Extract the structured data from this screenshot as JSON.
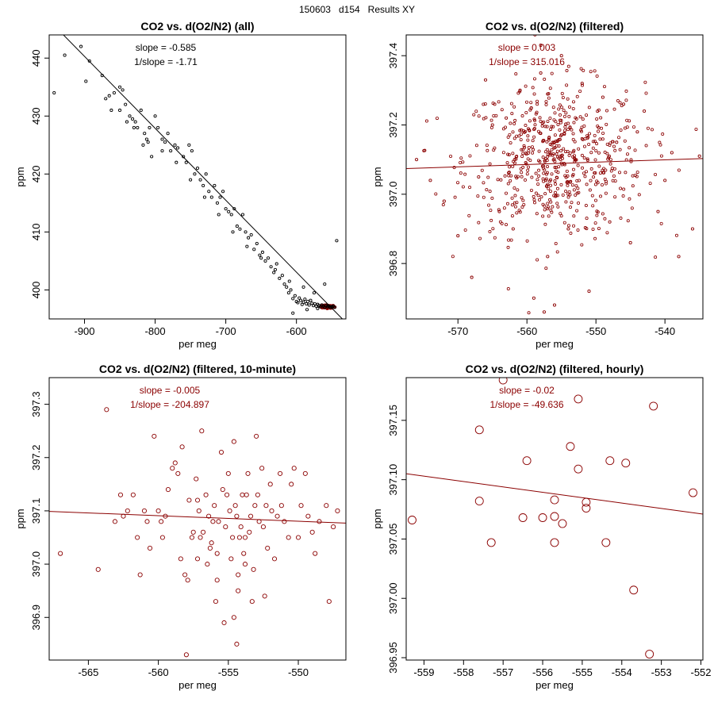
{
  "figure_title": "150603   d154   Results XY",
  "chart_data": [
    {
      "type": "scatter",
      "title": "CO2 vs. d(O2/N2) (all)",
      "xlabel": "per meg",
      "ylabel": "ppm",
      "xlim": [
        -950,
        -530
      ],
      "ylim": [
        395,
        444
      ],
      "xticks": [
        -900,
        -800,
        -700,
        -600
      ],
      "yticks": [
        400,
        410,
        420,
        430,
        440
      ],
      "point_color": "#000000",
      "filtered_color": "#8b0000",
      "line_color": "#000000",
      "point_radius": 1.6,
      "annotations": [
        "slope = -0.585",
        "1/slope = -1.71"
      ],
      "annotation_color": "#000000",
      "fit": {
        "x": [
          -950,
          -535
        ],
        "y": [
          446.5,
          395.0
        ]
      },
      "points": [
        [
          -943,
          434
        ],
        [
          -928,
          440.5
        ],
        [
          -905,
          442
        ],
        [
          -898,
          436
        ],
        [
          -893,
          439.5
        ],
        [
          -875,
          437
        ],
        [
          -865,
          433.5
        ],
        [
          -862,
          431
        ],
        [
          -858,
          434
        ],
        [
          -850,
          435
        ],
        [
          -846,
          434.5
        ],
        [
          -842,
          432
        ],
        [
          -840,
          429
        ],
        [
          -836,
          430
        ],
        [
          -832,
          429.5
        ],
        [
          -828,
          429
        ],
        [
          -825,
          428
        ],
        [
          -820,
          431
        ],
        [
          -817,
          425
        ],
        [
          -815,
          427
        ],
        [
          -812,
          426
        ],
        [
          -808,
          428
        ],
        [
          -805,
          423
        ],
        [
          -800,
          430
        ],
        [
          -796,
          428
        ],
        [
          -790,
          426
        ],
        [
          -786,
          425.5
        ],
        [
          -782,
          427
        ],
        [
          -778,
          424
        ],
        [
          -772,
          425
        ],
        [
          -768,
          424.5
        ],
        [
          -760,
          423
        ],
        [
          -756,
          422
        ],
        [
          -752,
          425
        ],
        [
          -748,
          424
        ],
        [
          -744,
          420
        ],
        [
          -740,
          421
        ],
        [
          -736,
          419
        ],
        [
          -732,
          418
        ],
        [
          -728,
          420
        ],
        [
          -724,
          417
        ],
        [
          -720,
          416
        ],
        [
          -716,
          418
        ],
        [
          -712,
          415
        ],
        [
          -708,
          416
        ],
        [
          -704,
          417
        ],
        [
          -700,
          414
        ],
        [
          -696,
          413.5
        ],
        [
          -692,
          413
        ],
        [
          -688,
          414
        ],
        [
          -684,
          411
        ],
        [
          -680,
          410.5
        ],
        [
          -676,
          413
        ],
        [
          -672,
          410
        ],
        [
          -668,
          409
        ],
        [
          -664,
          409.5
        ],
        [
          -660,
          407
        ],
        [
          -656,
          408
        ],
        [
          -652,
          406
        ],
        [
          -648,
          406.5
        ],
        [
          -644,
          405
        ],
        [
          -640,
          405.5
        ],
        [
          -636,
          404
        ],
        [
          -632,
          403
        ],
        [
          -628,
          404.5
        ],
        [
          -624,
          402
        ],
        [
          -620,
          402.5
        ],
        [
          -617,
          401
        ],
        [
          -614,
          400.5
        ],
        [
          -611,
          399.5
        ],
        [
          -608,
          400
        ],
        [
          -605,
          398.5
        ],
        [
          -602,
          399
        ],
        [
          -600,
          398
        ],
        [
          -598,
          397.8
        ],
        [
          -596,
          398.6
        ],
        [
          -594,
          398.2
        ],
        [
          -592,
          397.5
        ],
        [
          -590,
          397.9
        ],
        [
          -588,
          398.4
        ],
        [
          -586,
          397.6
        ],
        [
          -584,
          398
        ],
        [
          -582,
          397.4
        ],
        [
          -580,
          398.2
        ],
        [
          -578,
          397.7
        ],
        [
          -576,
          397.3
        ],
        [
          -574,
          397.6
        ],
        [
          -572,
          397.2
        ],
        [
          -570,
          397.5
        ],
        [
          -568,
          397.3
        ],
        [
          -566,
          397.1
        ],
        [
          -564,
          397.4
        ],
        [
          -562,
          397.2
        ],
        [
          -560,
          397
        ],
        [
          -558,
          397.3
        ],
        [
          -556,
          397.1
        ],
        [
          -554,
          397.2
        ],
        [
          -552,
          397
        ],
        [
          -550,
          397.1
        ],
        [
          -548,
          397.2
        ],
        [
          -546,
          397
        ],
        [
          -543,
          408.5
        ],
        [
          -560,
          401
        ],
        [
          -575,
          399.5
        ],
        [
          -590,
          400.5
        ],
        [
          -610,
          401.5
        ],
        [
          -630,
          403.5
        ],
        [
          -650,
          405.5
        ],
        [
          -670,
          407.5
        ],
        [
          -690,
          410
        ],
        [
          -710,
          413
        ],
        [
          -730,
          416
        ],
        [
          -750,
          419
        ],
        [
          -770,
          422
        ],
        [
          -790,
          424
        ],
        [
          -810,
          425.5
        ],
        [
          -830,
          428
        ],
        [
          -850,
          431
        ],
        [
          -870,
          433
        ],
        [
          -605,
          396
        ],
        [
          -585,
          396.6
        ],
        [
          -570,
          396.8
        ]
      ],
      "filtered_cluster": {
        "x_center": -555,
        "x_spread": 9,
        "y_center": 397.1,
        "y_spread": 0.25,
        "count": 160
      }
    },
    {
      "type": "scatter",
      "title": "CO2 vs. d(O2/N2) (filtered)",
      "xlabel": "per meg",
      "ylabel": "ppm",
      "xlim": [
        -577.5,
        -534.5
      ],
      "ylim": [
        396.64,
        397.46
      ],
      "xticks": [
        -570,
        -560,
        -550,
        -540
      ],
      "yticks": [
        396.8,
        397.0,
        397.2,
        397.4
      ],
      "ytick_labels": [
        "396.8",
        "397.0",
        "397.2",
        "397.4"
      ],
      "point_color": "#8b0000",
      "line_color": "#8b0000",
      "point_radius": 1.6,
      "annotations": [
        "slope = 0.003",
        "1/slope = 315.016"
      ],
      "annotation_color": "#8b0000",
      "fit": {
        "x": [
          -577.5,
          -534.5
        ],
        "y": [
          397.074,
          397.103
        ]
      },
      "points": [
        [
          -576,
          397.1
        ],
        [
          -574,
          397.04
        ],
        [
          -572,
          396.98
        ],
        [
          -570,
          396.88
        ],
        [
          -568,
          396.76
        ],
        [
          -566,
          397.33
        ],
        [
          -565,
          397.2
        ],
        [
          -564,
          396.95
        ],
        [
          -562,
          396.9
        ],
        [
          -561,
          397.3
        ],
        [
          -559,
          396.7
        ],
        [
          -558,
          397.35
        ],
        [
          -557,
          396.82
        ],
        [
          -556,
          396.68
        ],
        [
          -555,
          397.4
        ],
        [
          -554,
          396.9
        ],
        [
          -552,
          397.32
        ],
        [
          -551,
          396.72
        ],
        [
          -549,
          397.28
        ],
        [
          -548,
          396.92
        ],
        [
          -546,
          397.26
        ],
        [
          -545,
          396.86
        ],
        [
          -543,
          397.24
        ],
        [
          -541,
          396.95
        ],
        [
          -539,
          397.12
        ],
        [
          -538,
          396.82
        ],
        [
          -536,
          396.9
        ],
        [
          -535,
          397.11
        ],
        [
          -558,
          397.43
        ],
        [
          -557.5,
          396.66
        ],
        [
          -563,
          397.22
        ],
        [
          -547,
          397.15
        ],
        [
          -544,
          397.18
        ],
        [
          -540,
          397.04
        ],
        [
          -567,
          397.05
        ]
      ],
      "cluster": {
        "x_center": -556,
        "x_spread": 6.5,
        "y_center": 397.1,
        "y_spread": 0.11,
        "count": 620
      }
    },
    {
      "type": "scatter",
      "title": "CO2 vs. d(O2/N2) (filtered, 10-minute)",
      "xlabel": "per meg",
      "ylabel": "ppm",
      "xlim": [
        -567.8,
        -546.6
      ],
      "ylim": [
        396.82,
        397.35
      ],
      "xticks": [
        -565,
        -560,
        -555,
        -550
      ],
      "yticks": [
        396.9,
        397.0,
        397.1,
        397.2,
        397.3
      ],
      "ytick_labels": [
        "396.9",
        "397.0",
        "397.1",
        "397.2",
        "397.3"
      ],
      "point_color": "#8b0000",
      "line_color": "#8b0000",
      "point_radius": 2.6,
      "annotations": [
        "slope = -0.005",
        "1/slope = -204.897"
      ],
      "annotation_color": "#8b0000",
      "fit": {
        "x": [
          -567.8,
          -546.6
        ],
        "y": [
          397.099,
          397.077
        ]
      },
      "points": [
        [
          -567,
          397.02
        ],
        [
          -564.3,
          396.99
        ],
        [
          -563.7,
          397.29
        ],
        [
          -563.1,
          397.08
        ],
        [
          -562.7,
          397.13
        ],
        [
          -562.5,
          397.09
        ],
        [
          -562.2,
          397.1
        ],
        [
          -561.8,
          397.13
        ],
        [
          -561.5,
          397.05
        ],
        [
          -561.3,
          396.98
        ],
        [
          -560.8,
          397.08
        ],
        [
          -560.6,
          397.03
        ],
        [
          -560.3,
          397.24
        ],
        [
          -560,
          397.1
        ],
        [
          -559.7,
          397.05
        ],
        [
          -559.5,
          397.09
        ],
        [
          -559.3,
          397.14
        ],
        [
          -559,
          397.18
        ],
        [
          -558.8,
          397.19
        ],
        [
          -558.6,
          397.17
        ],
        [
          -558.4,
          397.01
        ],
        [
          -558.3,
          397.22
        ],
        [
          -558.1,
          396.98
        ],
        [
          -558,
          396.83
        ],
        [
          -557.9,
          396.97
        ],
        [
          -557.8,
          397.12
        ],
        [
          -557.6,
          397.05
        ],
        [
          -557.5,
          397.06
        ],
        [
          -557.3,
          397.16
        ],
        [
          -557.2,
          397.12
        ],
        [
          -557.1,
          397.1
        ],
        [
          -557,
          397.05
        ],
        [
          -556.9,
          397.25
        ],
        [
          -556.8,
          397.06
        ],
        [
          -556.6,
          397.13
        ],
        [
          -556.4,
          397.09
        ],
        [
          -556.3,
          397.03
        ],
        [
          -556.2,
          397.04
        ],
        [
          -556.1,
          397.08
        ],
        [
          -556,
          397.11
        ],
        [
          -555.9,
          396.93
        ],
        [
          -555.8,
          397.02
        ],
        [
          -555.7,
          397.08
        ],
        [
          -555.5,
          397.21
        ],
        [
          -555.4,
          397.14
        ],
        [
          -555.3,
          396.89
        ],
        [
          -555.2,
          397.07
        ],
        [
          -555.1,
          397.13
        ],
        [
          -555,
          397.17
        ],
        [
          -554.9,
          397.1
        ],
        [
          -554.8,
          397.01
        ],
        [
          -554.7,
          397.05
        ],
        [
          -554.6,
          397.23
        ],
        [
          -554.5,
          397.11
        ],
        [
          -554.4,
          397.09
        ],
        [
          -554.3,
          396.98
        ],
        [
          -554.2,
          397.05
        ],
        [
          -554.1,
          397.07
        ],
        [
          -554,
          397.13
        ],
        [
          -553.9,
          397.02
        ],
        [
          -553.8,
          397.05
        ],
        [
          -553.7,
          397.13
        ],
        [
          -553.6,
          397.17
        ],
        [
          -553.5,
          397.06
        ],
        [
          -553.4,
          397.09
        ],
        [
          -553.2,
          396.99
        ],
        [
          -553.1,
          397.11
        ],
        [
          -553,
          397.24
        ],
        [
          -552.9,
          397.13
        ],
        [
          -552.8,
          397.08
        ],
        [
          -552.6,
          397.18
        ],
        [
          -552.5,
          397.07
        ],
        [
          -552.3,
          397.11
        ],
        [
          -552.2,
          397.03
        ],
        [
          -552,
          397.15
        ],
        [
          -551.9,
          397.1
        ],
        [
          -551.7,
          397.01
        ],
        [
          -551.5,
          397.09
        ],
        [
          -551.3,
          397.17
        ],
        [
          -551.2,
          397.11
        ],
        [
          -551,
          397.08
        ],
        [
          -550.7,
          397.05
        ],
        [
          -550.5,
          397.15
        ],
        [
          -550.3,
          397.18
        ],
        [
          -550,
          397.05
        ],
        [
          -549.8,
          397.11
        ],
        [
          -549.5,
          397.17
        ],
        [
          -549.3,
          397.09
        ],
        [
          -549,
          397.06
        ],
        [
          -548.8,
          397.02
        ],
        [
          -548.5,
          397.08
        ],
        [
          -548,
          397.11
        ],
        [
          -547.8,
          396.93
        ],
        [
          -547.5,
          397.07
        ],
        [
          -547.2,
          397.1
        ],
        [
          -555.8,
          396.97
        ],
        [
          -556.5,
          397
        ],
        [
          -554.3,
          396.95
        ],
        [
          -553.3,
          396.93
        ],
        [
          -552.4,
          396.94
        ],
        [
          -554.4,
          396.85
        ],
        [
          -554.6,
          396.9
        ],
        [
          -557.2,
          397.01
        ],
        [
          -559.8,
          397.08
        ],
        [
          -561,
          397.1
        ],
        [
          -553.8,
          397.0
        ]
      ]
    },
    {
      "type": "scatter",
      "title": "CO2 vs. d(O2/N2) (filtered, hourly)",
      "xlabel": "per meg",
      "ylabel": "ppm",
      "xlim": [
        -559.45,
        -551.95
      ],
      "ylim": [
        396.948,
        397.186
      ],
      "xticks": [
        -559,
        -558,
        -557,
        -556,
        -555,
        -554,
        -553,
        -552
      ],
      "yticks": [
        396.95,
        397.0,
        397.05,
        397.1,
        397.15
      ],
      "ytick_labels": [
        "396.95",
        "397.00",
        "397.05",
        "397.10",
        "397.15"
      ],
      "point_color": "#8b0000",
      "line_color": "#8b0000",
      "point_radius": 5,
      "annotations": [
        "slope = -0.02",
        "1/slope = -49.636"
      ],
      "annotation_color": "#8b0000",
      "fit": {
        "x": [
          -559.45,
          -551.95
        ],
        "y": [
          397.105,
          397.071
        ]
      },
      "points": [
        [
          -559.3,
          397.066
        ],
        [
          -557.6,
          397.142
        ],
        [
          -557.6,
          397.082
        ],
        [
          -557.3,
          397.047
        ],
        [
          -557,
          397.184
        ],
        [
          -556.4,
          397.116
        ],
        [
          -556.5,
          397.068
        ],
        [
          -556,
          397.068
        ],
        [
          -555.7,
          397.047
        ],
        [
          -555.7,
          397.069
        ],
        [
          -555.7,
          397.083
        ],
        [
          -555.5,
          397.063
        ],
        [
          -555.3,
          397.128
        ],
        [
          -555.1,
          397.109
        ],
        [
          -555.1,
          397.168
        ],
        [
          -554.9,
          397.081
        ],
        [
          -554.9,
          397.076
        ],
        [
          -554.4,
          397.047
        ],
        [
          -554.3,
          397.116
        ],
        [
          -553.9,
          397.114
        ],
        [
          -553.7,
          397.007
        ],
        [
          -553.3,
          396.953
        ],
        [
          -553.2,
          397.162
        ],
        [
          -552.2,
          397.089
        ]
      ]
    }
  ]
}
